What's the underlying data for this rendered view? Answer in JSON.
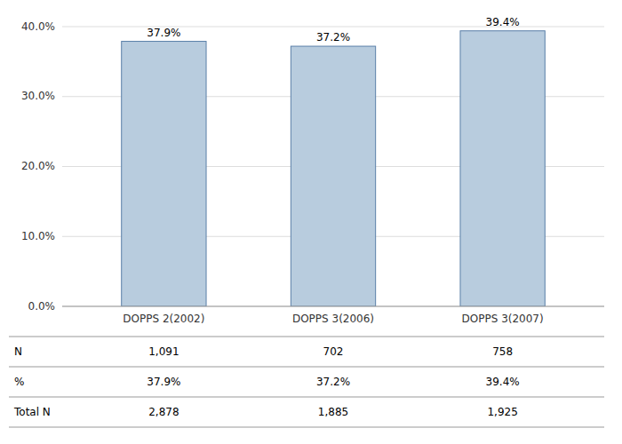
{
  "chart_data": {
    "type": "bar",
    "categories": [
      "DOPPS 2(2002)",
      "DOPPS 3(2006)",
      "DOPPS 3(2007)"
    ],
    "values": [
      37.9,
      37.2,
      39.4
    ],
    "value_labels": [
      "37.9%",
      "37.2%",
      "39.4%"
    ],
    "data_labels": true,
    "color": "#b8ccde",
    "ylim": [
      0,
      40
    ],
    "yticks": [
      {
        "value": 0,
        "label": "0.0%"
      },
      {
        "value": 10,
        "label": "10.0%"
      },
      {
        "value": 20,
        "label": "20.0%"
      },
      {
        "value": 30,
        "label": "30.0%"
      },
      {
        "value": 40,
        "label": "40.0%"
      }
    ],
    "grid": true,
    "table": {
      "rows": [
        {
          "label": "N",
          "cells": [
            "1,091",
            "702",
            "758"
          ]
        },
        {
          "label": "%",
          "cells": [
            "37.9%",
            "37.2%",
            "39.4%"
          ]
        },
        {
          "label": "Total N",
          "cells": [
            "2,878",
            "1,885",
            "1,925"
          ]
        }
      ]
    }
  }
}
